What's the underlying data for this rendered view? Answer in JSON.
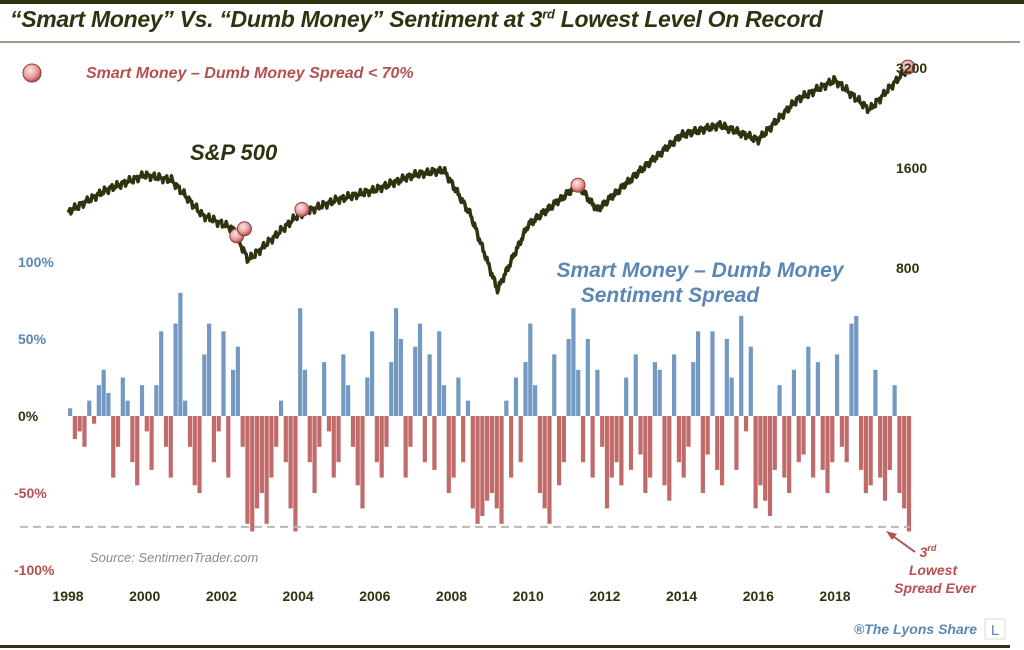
{
  "title": {
    "pre": "“Smart Money” Vs. “Dumb Money” Sentiment at 3",
    "sup": "rd",
    "post": " Lowest Level On Record"
  },
  "chart_data": {
    "type": "line+bar",
    "title": "“Smart Money” Vs. “Dumb Money” Sentiment at 3rd Lowest Level On Record",
    "legend": {
      "label": "Smart Money – Dumb Money Spread < 70%",
      "placement": "top-left"
    },
    "x_ticks": [
      "1998",
      "2000",
      "2002",
      "2004",
      "2006",
      "2008",
      "2010",
      "2012",
      "2014",
      "2016",
      "2018"
    ],
    "sp500": {
      "label": "S&P 500",
      "scale": "log",
      "right_ticks": [
        "3200",
        "1600",
        "800"
      ],
      "right_tick_values": [
        3200,
        1600,
        800
      ],
      "points": [
        [
          1998.0,
          1179
        ],
        [
          1999.0,
          1374
        ],
        [
          2000.0,
          1524
        ],
        [
          2000.7,
          1472
        ],
        [
          2001.5,
          1155
        ],
        [
          2002.3,
          1050
        ],
        [
          2002.7,
          845
        ],
        [
          2003.0,
          906
        ],
        [
          2004.0,
          1155
        ],
        [
          2005.0,
          1282
        ],
        [
          2006.0,
          1374
        ],
        [
          2007.0,
          1524
        ],
        [
          2007.8,
          1578
        ],
        [
          2008.5,
          1155
        ],
        [
          2009.2,
          687
        ],
        [
          2010.0,
          1078
        ],
        [
          2011.3,
          1422
        ],
        [
          2011.8,
          1196
        ],
        [
          2013.0,
          1600
        ],
        [
          2014.0,
          2011
        ],
        [
          2015.0,
          2155
        ],
        [
          2016.0,
          1943
        ],
        [
          2017.0,
          2563
        ],
        [
          2018.0,
          2944
        ],
        [
          2018.9,
          2392
        ],
        [
          2019.9,
          3200
        ]
      ],
      "signals": [
        [
          2002.4,
          1000
        ],
        [
          2002.6,
          1050
        ],
        [
          2004.1,
          1200
        ],
        [
          2011.3,
          1420
        ],
        [
          2019.9,
          3220
        ]
      ]
    },
    "spread": {
      "label_line1": "Smart Money – Dumb Money",
      "label_line2": "Sentiment Spread",
      "left_ticks": [
        "100%",
        "50%",
        "0%",
        "-50%",
        "-100%"
      ],
      "left_tick_values": [
        100,
        50,
        0,
        -50,
        -100
      ],
      "ylim": [
        -100,
        100
      ],
      "threshold": -72,
      "start": 1998.0,
      "step": 0.125,
      "values": [
        5,
        -15,
        -10,
        -20,
        10,
        -5,
        20,
        30,
        15,
        -40,
        -20,
        25,
        10,
        -30,
        -45,
        20,
        -10,
        -35,
        20,
        55,
        -20,
        -40,
        60,
        80,
        10,
        -20,
        -45,
        -50,
        40,
        60,
        -30,
        -10,
        55,
        -40,
        30,
        45,
        -20,
        -70,
        -75,
        -60,
        -50,
        -70,
        -40,
        -20,
        10,
        -30,
        -60,
        -75,
        70,
        30,
        -30,
        -50,
        -20,
        35,
        -10,
        -40,
        -30,
        40,
        20,
        -20,
        -45,
        -60,
        25,
        55,
        -30,
        -40,
        -20,
        35,
        70,
        50,
        -40,
        -20,
        45,
        60,
        -30,
        40,
        -35,
        55,
        20,
        -50,
        -40,
        25,
        -30,
        10,
        -60,
        -70,
        -65,
        -55,
        -50,
        -60,
        -70,
        10,
        -40,
        25,
        -30,
        35,
        60,
        20,
        -50,
        -60,
        -70,
        40,
        -45,
        -30,
        50,
        70,
        30,
        -30,
        50,
        -40,
        30,
        -20,
        -60,
        -40,
        -30,
        -45,
        25,
        -35,
        40,
        -25,
        -50,
        -40,
        35,
        30,
        -45,
        -55,
        40,
        -30,
        -40,
        -20,
        35,
        55,
        -50,
        -25,
        55,
        -35,
        -45,
        50,
        25,
        -35,
        65,
        -10,
        45,
        -60,
        -45,
        -55,
        -65,
        -35,
        20,
        -40,
        -50,
        30,
        -30,
        -25,
        45,
        -40,
        35,
        -35,
        -50,
        -30,
        40,
        -20,
        -30,
        60,
        65,
        -35,
        -50,
        -45,
        30,
        -40,
        -55,
        -35,
        20,
        -50,
        -60,
        -75
      ]
    },
    "annotation": {
      "line1": "3",
      "line1_sup": "rd",
      "line2": "Lowest",
      "line3": "Spread Ever"
    },
    "source": "Source: SentimenTrader.com"
  },
  "footer": {
    "brand": "®The Lyons Share",
    "logo": "L"
  },
  "colors": {
    "olive": "#2f3410",
    "blue": "#5b87b5",
    "red": "#b5504f",
    "marker": "#e7a9a9"
  }
}
